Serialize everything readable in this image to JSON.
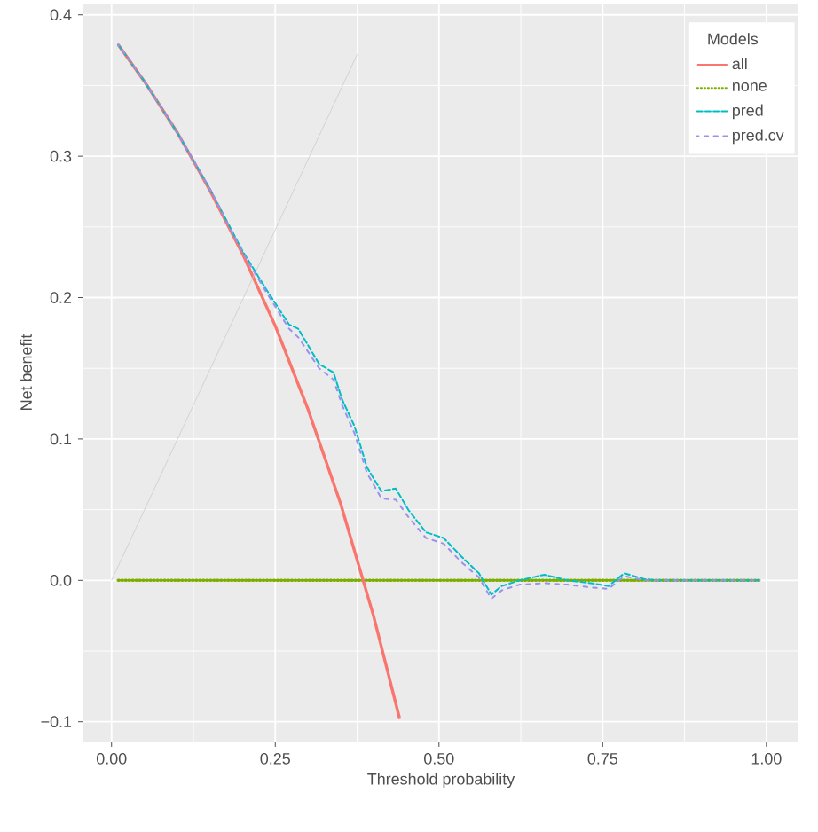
{
  "chart_data": {
    "type": "line",
    "xlabel": "Threshold probability",
    "ylabel": "Net benefit",
    "legend_title": "Models",
    "series": [
      {
        "name": "all",
        "color": "#f8766d",
        "line_style": "solid",
        "x": [
          0.01,
          0.05,
          0.1,
          0.15,
          0.2,
          0.25,
          0.3,
          0.35,
          0.4,
          0.44
        ],
        "values": [
          0.379,
          0.353,
          0.317,
          0.276,
          0.231,
          0.18,
          0.121,
          0.054,
          -0.025,
          -0.098
        ]
      },
      {
        "name": "none",
        "color": "#7cae00",
        "line_style": "dotted",
        "x": [
          0.01,
          0.99
        ],
        "values": [
          0,
          0
        ]
      },
      {
        "name": "pred",
        "color": "#00bfc4",
        "line_style": "dashed",
        "x": [
          0.01,
          0.05,
          0.1,
          0.15,
          0.2,
          0.236,
          0.271,
          0.285,
          0.317,
          0.339,
          0.352,
          0.371,
          0.39,
          0.412,
          0.434,
          0.453,
          0.48,
          0.507,
          0.534,
          0.561,
          0.58,
          0.596,
          0.623,
          0.661,
          0.696,
          0.732,
          0.759,
          0.783,
          0.813,
          0.83,
          0.99
        ],
        "values": [
          0.379,
          0.353,
          0.317,
          0.277,
          0.233,
          0.206,
          0.181,
          0.178,
          0.153,
          0.147,
          0.128,
          0.109,
          0.08,
          0.063,
          0.065,
          0.05,
          0.034,
          0.03,
          0.017,
          0.005,
          -0.01,
          -0.004,
          0,
          0.004,
          0,
          -0.002,
          -0.004,
          0.005,
          0.001,
          0,
          0
        ]
      },
      {
        "name": "pred.cv",
        "color": "#9d8ff0",
        "line_style": "dashed",
        "x": [
          0.01,
          0.05,
          0.1,
          0.15,
          0.2,
          0.236,
          0.271,
          0.285,
          0.317,
          0.339,
          0.352,
          0.371,
          0.39,
          0.412,
          0.434,
          0.453,
          0.48,
          0.507,
          0.534,
          0.561,
          0.58,
          0.596,
          0.623,
          0.661,
          0.696,
          0.732,
          0.759,
          0.783,
          0.813,
          0.83,
          0.99
        ],
        "values": [
          0.379,
          0.353,
          0.317,
          0.277,
          0.232,
          0.204,
          0.178,
          0.172,
          0.15,
          0.142,
          0.124,
          0.104,
          0.076,
          0.058,
          0.057,
          0.045,
          0.03,
          0.026,
          0.013,
          0.002,
          -0.013,
          -0.007,
          -0.003,
          -0.002,
          -0.003,
          -0.005,
          -0.006,
          0.003,
          0,
          0,
          0
        ]
      },
      {
        "color": "#cccccc",
        "line_style": "solid",
        "x": [
          0,
          0.375
        ],
        "values": [
          0,
          0.372
        ]
      }
    ],
    "xlim": [
      -0.043,
      1.049
    ],
    "ylim": [
      -0.114,
      0.408
    ],
    "xticks": [
      {
        "value": 0,
        "label": "0.00"
      },
      {
        "value": 0.25,
        "label": "0.25"
      },
      {
        "value": 0.5,
        "label": "0.50"
      },
      {
        "value": 0.75,
        "label": "0.75"
      },
      {
        "value": 1,
        "label": "1.00"
      }
    ],
    "yticks": [
      {
        "value": -0.1,
        "label": "−0.1"
      },
      {
        "value": 0,
        "label": "0.0"
      },
      {
        "value": 0.1,
        "label": "0.1"
      },
      {
        "value": 0.2,
        "label": "0.2"
      },
      {
        "value": 0.3,
        "label": "0.3"
      },
      {
        "value": 0.4,
        "label": "0.4"
      }
    ],
    "grid": true,
    "legend": "top right",
    "marker": "none"
  }
}
